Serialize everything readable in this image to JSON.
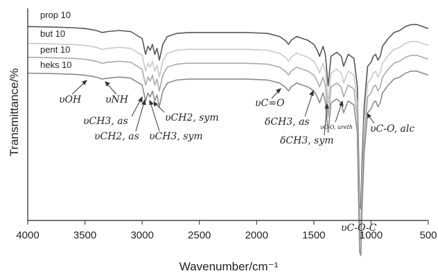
{
  "chart_data": {
    "type": "line",
    "title": "",
    "xlabel": "Wavenumber/cm⁻¹",
    "ylabel": "Transmittance/%",
    "xlim": [
      4000,
      500
    ],
    "x_reversed": true,
    "x_ticks": [
      "4000",
      "3500",
      "3000",
      "2500",
      "2000",
      "1500",
      "1000",
      "500"
    ],
    "y_ticks": [],
    "grid": false,
    "colors": {
      "axis": "#222222",
      "text": "#222222",
      "arrow": "#333333"
    },
    "series": [
      {
        "name": "prop 10",
        "color": "#555555",
        "baseline": 0.05,
        "x": [
          4000,
          3800,
          3600,
          3500,
          3450,
          3400,
          3350,
          3300,
          3200,
          3100,
          3000,
          2970,
          2950,
          2930,
          2910,
          2890,
          2870,
          2850,
          2820,
          2780,
          2700,
          2600,
          2500,
          2400,
          2300,
          2200,
          2100,
          2000,
          1900,
          1800,
          1750,
          1720,
          1700,
          1650,
          1600,
          1550,
          1500,
          1470,
          1450,
          1420,
          1400,
          1375,
          1350,
          1300,
          1260,
          1240,
          1200,
          1150,
          1120,
          1100,
          1090,
          1080,
          1060,
          1030,
          1000,
          980,
          960,
          940,
          920,
          900,
          850,
          800,
          750,
          700,
          650,
          600,
          550,
          500
        ],
        "y": [
          0.0,
          0.002,
          0.006,
          0.01,
          0.015,
          0.02,
          0.03,
          0.025,
          0.02,
          0.025,
          0.06,
          0.14,
          0.1,
          0.12,
          0.09,
          0.14,
          0.11,
          0.17,
          0.09,
          0.05,
          0.035,
          0.03,
          0.03,
          0.03,
          0.03,
          0.03,
          0.03,
          0.032,
          0.035,
          0.05,
          0.07,
          0.09,
          0.07,
          0.05,
          0.06,
          0.07,
          0.09,
          0.12,
          0.15,
          0.1,
          0.14,
          0.3,
          0.15,
          0.13,
          0.15,
          0.2,
          0.14,
          0.16,
          0.3,
          0.9,
          0.92,
          0.7,
          0.4,
          0.2,
          0.18,
          0.15,
          0.14,
          0.17,
          0.15,
          0.1,
          0.06,
          0.03,
          0.02,
          0.0,
          -0.01,
          -0.01,
          0.0,
          0.01
        ]
      },
      {
        "name": "but 10",
        "color": "#c9c9c9",
        "baseline": 0.135,
        "x": [
          4000,
          3800,
          3600,
          3500,
          3450,
          3400,
          3350,
          3300,
          3200,
          3100,
          3000,
          2970,
          2950,
          2930,
          2910,
          2890,
          2870,
          2850,
          2820,
          2780,
          2700,
          2600,
          2500,
          2400,
          2300,
          2200,
          2100,
          2000,
          1900,
          1800,
          1750,
          1720,
          1700,
          1650,
          1600,
          1550,
          1500,
          1470,
          1450,
          1420,
          1400,
          1375,
          1350,
          1300,
          1260,
          1240,
          1200,
          1150,
          1120,
          1100,
          1090,
          1080,
          1060,
          1030,
          1000,
          980,
          960,
          940,
          920,
          900,
          850,
          800,
          750,
          700,
          650,
          600,
          550,
          500
        ],
        "y": [
          0.0,
          0.002,
          0.006,
          0.01,
          0.015,
          0.02,
          0.03,
          0.025,
          0.02,
          0.025,
          0.06,
          0.14,
          0.1,
          0.12,
          0.09,
          0.14,
          0.11,
          0.17,
          0.09,
          0.05,
          0.035,
          0.03,
          0.03,
          0.03,
          0.03,
          0.03,
          0.03,
          0.032,
          0.035,
          0.05,
          0.07,
          0.09,
          0.07,
          0.05,
          0.06,
          0.07,
          0.09,
          0.12,
          0.15,
          0.1,
          0.14,
          0.3,
          0.15,
          0.13,
          0.15,
          0.2,
          0.14,
          0.16,
          0.3,
          0.9,
          0.92,
          0.7,
          0.4,
          0.2,
          0.18,
          0.15,
          0.14,
          0.17,
          0.15,
          0.1,
          0.06,
          0.03,
          0.02,
          0.0,
          -0.01,
          -0.01,
          0.0,
          0.01
        ]
      },
      {
        "name": "pent 10",
        "color": "#a9a9a9",
        "baseline": 0.205,
        "x": [
          4000,
          3800,
          3600,
          3500,
          3450,
          3400,
          3350,
          3300,
          3200,
          3100,
          3000,
          2970,
          2950,
          2930,
          2910,
          2890,
          2870,
          2850,
          2820,
          2780,
          2700,
          2600,
          2500,
          2400,
          2300,
          2200,
          2100,
          2000,
          1900,
          1800,
          1750,
          1720,
          1700,
          1650,
          1600,
          1550,
          1500,
          1470,
          1450,
          1420,
          1400,
          1375,
          1350,
          1300,
          1260,
          1240,
          1200,
          1150,
          1120,
          1100,
          1090,
          1080,
          1060,
          1030,
          1000,
          980,
          960,
          940,
          920,
          900,
          850,
          800,
          750,
          700,
          650,
          600,
          550,
          500
        ],
        "y": [
          0.0,
          0.002,
          0.006,
          0.01,
          0.015,
          0.02,
          0.03,
          0.025,
          0.02,
          0.025,
          0.06,
          0.14,
          0.1,
          0.12,
          0.09,
          0.14,
          0.11,
          0.17,
          0.09,
          0.05,
          0.035,
          0.03,
          0.03,
          0.03,
          0.03,
          0.03,
          0.03,
          0.032,
          0.035,
          0.05,
          0.07,
          0.09,
          0.07,
          0.05,
          0.06,
          0.07,
          0.09,
          0.12,
          0.15,
          0.1,
          0.14,
          0.3,
          0.15,
          0.13,
          0.15,
          0.2,
          0.14,
          0.16,
          0.3,
          0.9,
          0.92,
          0.7,
          0.4,
          0.2,
          0.18,
          0.15,
          0.14,
          0.17,
          0.15,
          0.1,
          0.06,
          0.03,
          0.02,
          0.0,
          -0.01,
          -0.01,
          0.0,
          0.01
        ]
      },
      {
        "name": "heks 10",
        "color": "#8a8a8a",
        "baseline": 0.285,
        "x": [
          4000,
          3800,
          3600,
          3500,
          3450,
          3400,
          3350,
          3300,
          3200,
          3100,
          3000,
          2970,
          2950,
          2930,
          2910,
          2890,
          2870,
          2850,
          2820,
          2780,
          2700,
          2600,
          2500,
          2400,
          2300,
          2200,
          2100,
          2000,
          1900,
          1800,
          1750,
          1720,
          1700,
          1650,
          1600,
          1550,
          1500,
          1470,
          1450,
          1420,
          1400,
          1375,
          1350,
          1300,
          1260,
          1240,
          1200,
          1150,
          1120,
          1100,
          1090,
          1080,
          1060,
          1030,
          1000,
          980,
          960,
          940,
          920,
          900,
          850,
          800,
          750,
          700,
          650,
          600,
          550,
          500
        ],
        "y": [
          0.0,
          0.002,
          0.006,
          0.01,
          0.015,
          0.02,
          0.03,
          0.025,
          0.02,
          0.025,
          0.06,
          0.14,
          0.1,
          0.12,
          0.09,
          0.14,
          0.11,
          0.17,
          0.09,
          0.05,
          0.035,
          0.03,
          0.03,
          0.03,
          0.03,
          0.03,
          0.03,
          0.032,
          0.035,
          0.05,
          0.07,
          0.09,
          0.07,
          0.05,
          0.06,
          0.07,
          0.09,
          0.12,
          0.15,
          0.1,
          0.14,
          0.3,
          0.15,
          0.13,
          0.15,
          0.2,
          0.14,
          0.16,
          0.3,
          0.9,
          0.92,
          0.7,
          0.4,
          0.2,
          0.18,
          0.15,
          0.14,
          0.17,
          0.15,
          0.1,
          0.06,
          0.03,
          0.02,
          0.0,
          -0.01,
          -0.01,
          0.0,
          0.01
        ]
      }
    ],
    "annotations": [
      {
        "text": "υOH",
        "target_x": 3540
      },
      {
        "text": "υNH",
        "target_x": 3360
      },
      {
        "text": "υCH3, as",
        "target_x": 2960
      },
      {
        "text": "υCH2, as",
        "target_x": 2925
      },
      {
        "text": "υCH3, sym",
        "target_x": 2875
      },
      {
        "text": "υCH2, sym",
        "target_x": 2855
      },
      {
        "text": "υC=O",
        "target_x": 1720
      },
      {
        "text": "δCH3, as",
        "target_x": 1455
      },
      {
        "text": "δCH3, sym",
        "target_x": 1375
      },
      {
        "text": "υC-O, ureth",
        "target_x": 1240
      },
      {
        "text": "υC-O-C",
        "target_x": 1095
      },
      {
        "text": "υC-O, alc",
        "target_x": 1000
      }
    ]
  }
}
